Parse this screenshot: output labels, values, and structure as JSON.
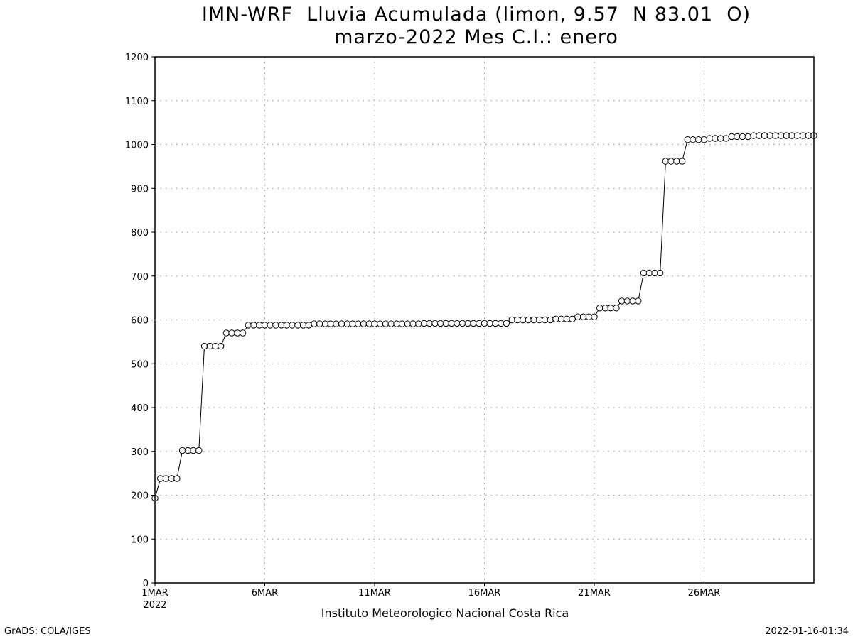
{
  "chart_data": {
    "type": "line",
    "title": "IMN-WRF  Lluvia Acumulada (limon, 9.57  N 83.01  O)",
    "subtitle": "marzo-2022 Mes C.I.: enero",
    "xlabel": "Instituto Meteorologico Nacional Costa Rica",
    "ylabel": "",
    "ylim": [
      0,
      1200
    ],
    "yticks": [
      0,
      100,
      200,
      300,
      400,
      500,
      600,
      700,
      800,
      900,
      1000,
      1100,
      1200
    ],
    "xlim": [
      1,
      31
    ],
    "xticks": [
      {
        "day": 1,
        "label": "1MAR",
        "sublabel": "2022"
      },
      {
        "day": 6,
        "label": "6MAR",
        "sublabel": ""
      },
      {
        "day": 11,
        "label": "11MAR",
        "sublabel": ""
      },
      {
        "day": 16,
        "label": "16MAR",
        "sublabel": ""
      },
      {
        "day": 21,
        "label": "21MAR",
        "sublabel": ""
      },
      {
        "day": 26,
        "label": "26MAR",
        "sublabel": ""
      }
    ],
    "grid": true,
    "marker": "open-circle",
    "step_days": 0.25,
    "series": [
      {
        "values": [
          193,
          238,
          238,
          238,
          238,
          302,
          302,
          302,
          302,
          540,
          540,
          540,
          540,
          570,
          570,
          570,
          570,
          588,
          588,
          588,
          588,
          588,
          588,
          588,
          588,
          588,
          588,
          588,
          588,
          591,
          591,
          591,
          591,
          591,
          591,
          591,
          591,
          591,
          591,
          591,
          591,
          591,
          591,
          591,
          591,
          591,
          591,
          591,
          591,
          592,
          592,
          592,
          592,
          592,
          592,
          592,
          592,
          592,
          592,
          592,
          592,
          592,
          592,
          592,
          592,
          600,
          600,
          600,
          600,
          600,
          600,
          600,
          600,
          602,
          602,
          602,
          602,
          607,
          607,
          607,
          607,
          627,
          627,
          627,
          627,
          643,
          643,
          643,
          643,
          707,
          707,
          707,
          707,
          962,
          962,
          962,
          962,
          1011,
          1011,
          1011,
          1011,
          1014,
          1014,
          1014,
          1014,
          1018,
          1018,
          1018,
          1018,
          1020,
          1020,
          1020,
          1020,
          1020,
          1020,
          1020,
          1020,
          1020,
          1020,
          1020,
          1020
        ]
      }
    ]
  },
  "footer": {
    "left": "GrADS: COLA/IGES",
    "right": "2022-01-16-01:34"
  }
}
